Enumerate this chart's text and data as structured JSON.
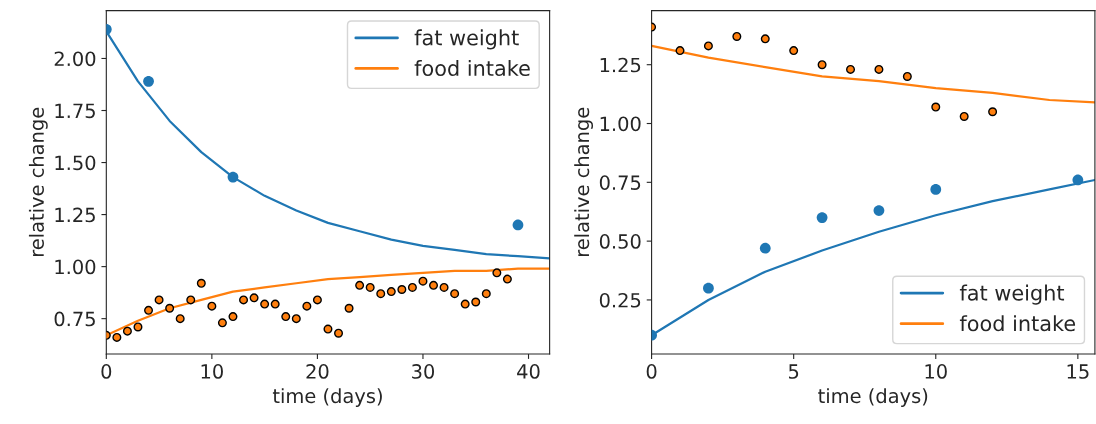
{
  "chart_data": [
    {
      "type": "line",
      "xlabel": "time (days)",
      "ylabel": "relative change",
      "xlim": [
        0,
        42
      ],
      "ylim": [
        0.58,
        2.23
      ],
      "xticks": [
        0,
        10,
        20,
        30,
        40
      ],
      "yticks": [
        {
          "value": 0.75,
          "label": "0.75"
        },
        {
          "value": 1.0,
          "label": "1.00"
        },
        {
          "value": 1.25,
          "label": "1.25"
        },
        {
          "value": 1.5,
          "label": "1.50"
        },
        {
          "value": 1.75,
          "label": "1.75"
        },
        {
          "value": 2.0,
          "label": "2.00"
        }
      ],
      "legend": "top right",
      "grid": false,
      "series": [
        {
          "name": "fat weight",
          "color": "#1f77b4",
          "x": [
            0,
            3,
            6,
            9,
            12,
            15,
            18,
            21,
            24,
            27,
            30,
            33,
            36,
            39,
            42
          ],
          "values": [
            2.13,
            1.89,
            1.7,
            1.55,
            1.43,
            1.34,
            1.27,
            1.21,
            1.17,
            1.13,
            1.1,
            1.08,
            1.06,
            1.05,
            1.04
          ]
        },
        {
          "name": "food intake",
          "color": "#ff7f0e",
          "x": [
            0,
            3,
            6,
            9,
            12,
            15,
            18,
            21,
            24,
            27,
            30,
            33,
            36,
            39,
            42
          ],
          "values": [
            0.67,
            0.74,
            0.8,
            0.84,
            0.88,
            0.9,
            0.92,
            0.94,
            0.95,
            0.96,
            0.97,
            0.98,
            0.98,
            0.99,
            0.99
          ]
        },
        {
          "type": "scatter",
          "marker": "circle",
          "color": "#1f77b4",
          "x": [
            0,
            4,
            12,
            39
          ],
          "values": [
            2.14,
            1.89,
            1.43,
            1.2
          ]
        },
        {
          "type": "scatter",
          "marker": "circle",
          "color": "#ff7f0e",
          "x": [
            0,
            1,
            2,
            3,
            4,
            5,
            6,
            7,
            8,
            9,
            10,
            11,
            12,
            13,
            14,
            15,
            16,
            17,
            18,
            19,
            20,
            21,
            22,
            23,
            24,
            25,
            26,
            27,
            28,
            29,
            30,
            31,
            32,
            33,
            34,
            35,
            36,
            37,
            38
          ],
          "values": [
            0.67,
            0.66,
            0.69,
            0.71,
            0.79,
            0.84,
            0.8,
            0.75,
            0.84,
            0.92,
            0.81,
            0.73,
            0.76,
            0.84,
            0.85,
            0.82,
            0.82,
            0.76,
            0.75,
            0.81,
            0.84,
            0.7,
            0.68,
            0.8,
            0.91,
            0.9,
            0.87,
            0.88,
            0.89,
            0.9,
            0.93,
            0.91,
            0.9,
            0.87,
            0.82,
            0.83,
            0.87,
            0.97,
            0.94
          ]
        }
      ]
    },
    {
      "type": "line",
      "xlabel": "time (days)",
      "ylabel": "relative change",
      "xlim": [
        0,
        15.6
      ],
      "ylim": [
        0.02,
        1.48
      ],
      "xticks": [
        0,
        5,
        10,
        15
      ],
      "yticks": [
        {
          "value": 0.25,
          "label": "0.25"
        },
        {
          "value": 0.5,
          "label": "0.50"
        },
        {
          "value": 0.75,
          "label": "0.75"
        },
        {
          "value": 1.0,
          "label": "1.00"
        },
        {
          "value": 1.25,
          "label": "1.25"
        }
      ],
      "legend": "bottom right",
      "grid": false,
      "series": [
        {
          "name": "fat weight",
          "color": "#1f77b4",
          "x": [
            0,
            2,
            4,
            6,
            8,
            10,
            12,
            14,
            15.6
          ],
          "values": [
            0.1,
            0.25,
            0.37,
            0.46,
            0.54,
            0.61,
            0.67,
            0.72,
            0.76
          ]
        },
        {
          "name": "food intake",
          "color": "#ff7f0e",
          "x": [
            0,
            2,
            4,
            6,
            8,
            10,
            12,
            14,
            15.6
          ],
          "values": [
            1.33,
            1.28,
            1.24,
            1.2,
            1.18,
            1.15,
            1.13,
            1.1,
            1.09
          ]
        },
        {
          "type": "scatter",
          "marker": "circle",
          "color": "#1f77b4",
          "x": [
            0,
            2,
            4,
            6,
            8,
            10,
            15
          ],
          "values": [
            0.1,
            0.3,
            0.47,
            0.6,
            0.63,
            0.72,
            0.76
          ]
        },
        {
          "type": "scatter",
          "marker": "circle",
          "color": "#ff7f0e",
          "x": [
            0,
            1,
            2,
            3,
            4,
            5,
            6,
            7,
            8,
            9,
            10,
            11,
            12
          ],
          "values": [
            1.41,
            1.31,
            1.33,
            1.37,
            1.36,
            1.31,
            1.25,
            1.23,
            1.23,
            1.2,
            1.07,
            1.03,
            1.05
          ]
        }
      ]
    }
  ]
}
